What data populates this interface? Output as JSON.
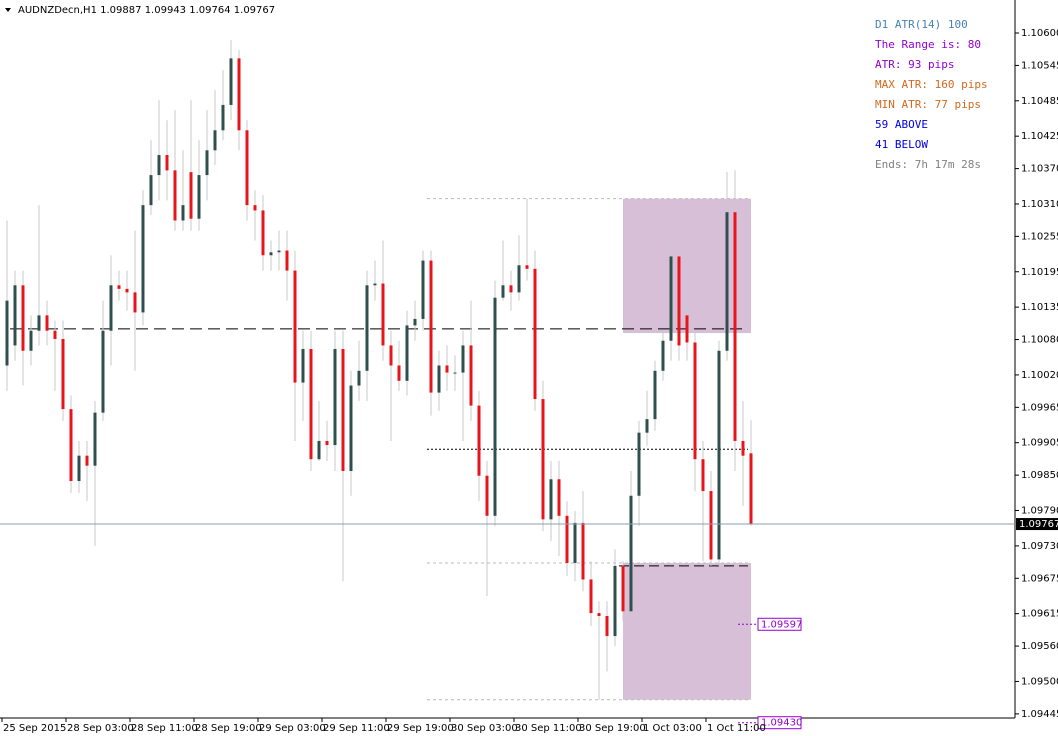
{
  "chart_data": {
    "type": "candlestick",
    "symbol": "AUDNZDecn,H1",
    "ylim": [
      1.09438,
      1.10656
    ],
    "yticks": [
      {
        "value": 1.106,
        "label": "1.10600"
      },
      {
        "value": 1.10545,
        "label": "1.10545"
      },
      {
        "value": 1.10485,
        "label": "1.10485"
      },
      {
        "value": 1.10425,
        "label": "1.10425"
      },
      {
        "value": 1.1037,
        "label": "1.10370"
      },
      {
        "value": 1.1031,
        "label": "1.10310"
      },
      {
        "value": 1.10255,
        "label": "1.10255"
      },
      {
        "value": 1.10195,
        "label": "1.10195"
      },
      {
        "value": 1.10135,
        "label": "1.10135"
      },
      {
        "value": 1.1008,
        "label": "1.10080"
      },
      {
        "value": 1.1002,
        "label": "1.10020"
      },
      {
        "value": 1.09965,
        "label": "1.09965"
      },
      {
        "value": 1.09905,
        "label": "1.09905"
      },
      {
        "value": 1.0985,
        "label": "1.09850"
      },
      {
        "value": 1.0979,
        "label": "1.09790"
      },
      {
        "value": 1.0973,
        "label": "1.09730"
      },
      {
        "value": 1.09675,
        "label": "1.09675"
      },
      {
        "value": 1.09615,
        "label": "1.09615"
      },
      {
        "value": 1.0956,
        "label": "1.09560"
      },
      {
        "value": 1.095,
        "label": "1.09500"
      },
      {
        "value": 1.09445,
        "label": "1.09445"
      }
    ],
    "x_labels": [
      "25 Sep 2015",
      "28 Sep 03:00",
      "28 Sep 11:00",
      "28 Sep 19:00",
      "29 Sep 03:00",
      "29 Sep 11:00",
      "29 Sep 19:00",
      "30 Sep 03:00",
      "30 Sep 11:00",
      "30 Sep 19:00",
      "1 Oct 03:00",
      "1 Oct 11:00"
    ],
    "up_color": "#2f4f4f",
    "down_color": "#e8141c",
    "wick_color": "#c8c8c8",
    "candles": {
      "open": [
        1.10036,
        1.1007,
        1.10172,
        1.10061,
        1.10095,
        1.10121,
        1.10095,
        1.10081,
        1.09962,
        1.0984,
        1.09883,
        1.09866,
        1.09956,
        1.10095,
        1.10172,
        1.10166,
        1.1016,
        1.10126,
        1.10308,
        1.10359,
        1.10393,
        1.10367,
        1.10282,
        1.10364,
        1.10285,
        1.10359,
        1.10401,
        1.10435,
        1.10478,
        1.10557,
        1.10435,
        1.10308,
        1.10299,
        1.10223,
        1.10228,
        1.10231,
        1.10197,
        1.10007,
        1.10064,
        1.09877,
        1.09908,
        1.09901,
        1.10064,
        1.09857,
        1.10002,
        1.10027,
        1.10172,
        1.10175,
        1.1007,
        1.10036,
        1.1001,
        1.10104,
        1.10115,
        1.10214,
        1.0999,
        1.10036,
        1.10024,
        1.10024,
        1.1007,
        1.09968,
        1.09849,
        1.09781,
        1.10151,
        1.10172,
        1.1016,
        1.10206,
        1.102,
        1.09979,
        1.09775,
        1.09843,
        1.09781,
        1.09701,
        1.09769,
        1.09673,
        1.09616,
        1.09611,
        1.09577,
        1.09696,
        1.09619,
        1.09815,
        1.09922,
        1.09945,
        1.10027,
        1.10078,
        1.10221,
        1.10121,
        1.10075,
        1.09877,
        1.09823,
        1.09707,
        1.10061,
        1.10296,
        1.09908,
        1.09887
      ],
      "high": [
        1.10282,
        1.10197,
        1.10197,
        1.10121,
        1.10308,
        1.10146,
        1.10112,
        1.10112,
        1.09985,
        1.09908,
        1.09908,
        1.09976,
        1.10146,
        1.10223,
        1.10197,
        1.10197,
        1.10265,
        1.10333,
        1.10418,
        1.10486,
        1.10452,
        1.10469,
        1.10401,
        1.10486,
        1.10418,
        1.10469,
        1.10503,
        1.10537,
        1.10588,
        1.10571,
        1.10452,
        1.10333,
        1.10325,
        1.10248,
        1.10265,
        1.10265,
        1.10231,
        1.10095,
        1.10095,
        1.09976,
        1.09942,
        1.10095,
        1.10095,
        1.10027,
        1.10078,
        1.10197,
        1.10214,
        1.10248,
        1.10095,
        1.10078,
        1.10129,
        1.10146,
        1.10231,
        1.10231,
        1.10061,
        1.1007,
        1.10053,
        1.10095,
        1.10146,
        1.09993,
        1.09874,
        1.1018,
        1.10248,
        1.10197,
        1.10257,
        1.10319,
        1.10231,
        1.1001,
        1.09874,
        1.09874,
        1.09806,
        1.09789,
        1.09823,
        1.09704,
        1.09636,
        1.09636,
        1.09724,
        1.09704,
        1.09857,
        1.09942,
        1.09993,
        1.10044,
        1.10095,
        1.10231,
        1.10231,
        1.10146,
        1.10095,
        1.09908,
        1.09857,
        1.10078,
        1.10364,
        1.10367,
        1.09976,
        1.09943
      ],
      "low": [
        1.09993,
        1.10044,
        1.10002,
        1.10036,
        1.1007,
        1.1007,
        1.09993,
        1.09942,
        1.0982,
        1.0982,
        1.09806,
        1.0973,
        1.09942,
        1.10036,
        1.10146,
        1.10129,
        1.10027,
        1.10104,
        1.10291,
        1.10316,
        1.10316,
        1.10265,
        1.10265,
        1.10265,
        1.10265,
        1.10316,
        1.10376,
        1.10418,
        1.10452,
        1.10401,
        1.10282,
        1.10248,
        1.10197,
        1.10197,
        1.10197,
        1.10146,
        1.09908,
        1.09942,
        1.09857,
        1.09874,
        1.09874,
        1.09857,
        1.0967,
        1.09815,
        1.09976,
        1.09976,
        1.10146,
        1.10044,
        1.09908,
        1.09993,
        1.09985,
        1.10078,
        1.10095,
        1.09951,
        1.09959,
        1.09993,
        1.09993,
        1.09908,
        1.09942,
        1.09806,
        1.09645,
        1.09764,
        1.10146,
        1.10129,
        1.10146,
        1.1018,
        1.09959,
        1.09755,
        1.09738,
        1.09713,
        1.09679,
        1.0967,
        1.09653,
        1.09594,
        1.09469,
        1.09517,
        1.0956,
        1.09602,
        1.09602,
        1.09764,
        1.099,
        1.09925,
        1.1001,
        1.10044,
        1.10044,
        1.10044,
        1.09823,
        1.09704,
        1.09696,
        1.09696,
        1.10044,
        1.09857,
        1.09798,
        1.09764
      ],
      "close": [
        1.10146,
        1.10172,
        1.10061,
        1.10095,
        1.10121,
        1.10095,
        1.10081,
        1.09962,
        1.0984,
        1.09883,
        1.09866,
        1.09956,
        1.10095,
        1.10172,
        1.10166,
        1.1016,
        1.10126,
        1.10308,
        1.10359,
        1.10393,
        1.10367,
        1.10282,
        1.10308,
        1.10285,
        1.10359,
        1.10401,
        1.10435,
        1.10478,
        1.10557,
        1.10435,
        1.10308,
        1.10299,
        1.10223,
        1.10228,
        1.10231,
        1.10197,
        1.10007,
        1.10064,
        1.09877,
        1.09908,
        1.09901,
        1.10064,
        1.09857,
        1.10002,
        1.10027,
        1.10172,
        1.10175,
        1.1007,
        1.10036,
        1.1001,
        1.10104,
        1.10115,
        1.10214,
        1.0999,
        1.10036,
        1.10024,
        1.10024,
        1.1007,
        1.09968,
        1.09849,
        1.09781,
        1.10151,
        1.10172,
        1.1016,
        1.10206,
        1.102,
        1.09979,
        1.09775,
        1.09843,
        1.09781,
        1.09701,
        1.09769,
        1.09673,
        1.09616,
        1.09611,
        1.09577,
        1.09696,
        1.09619,
        1.09815,
        1.09922,
        1.09945,
        1.10027,
        1.10078,
        1.10221,
        1.1007,
        1.10075,
        1.09877,
        1.09823,
        1.09707,
        1.10061,
        1.10296,
        1.09908,
        1.09883,
        1.09767
      ]
    },
    "levels": [
      1.10098,
      1.10319,
      1.09894,
      1.09701,
      1.09696,
      1.09469
    ],
    "zones": [
      [
        1.10319,
        1.10091
      ],
      [
        1.09701,
        1.09469
      ]
    ],
    "zone_color": "#d8bfd8",
    "price_labels": [
      {
        "value": 1.09597,
        "label": "1.09597"
      },
      {
        "value": 1.0943,
        "label": "1.09430"
      }
    ],
    "info": [
      {
        "text": "D1 ATR(14) 100",
        "color": "#4682b4"
      },
      {
        "text": "The Range is: 80",
        "color": "#9400d3"
      },
      {
        "text": "ATR: 93 pips",
        "color": "#9400d3"
      },
      {
        "text": "MAX ATR: 160 pips",
        "color": "#d2691e"
      },
      {
        "text": "MIN ATR: 77 pips",
        "color": "#d2691e"
      },
      {
        "text": "59 ABOVE",
        "color": "#0000e0"
      },
      {
        "text": "41 BELOW",
        "color": "#0000e0"
      },
      {
        "text": "Ends: 7h 17m 28s",
        "color": "#808080"
      }
    ]
  }
}
